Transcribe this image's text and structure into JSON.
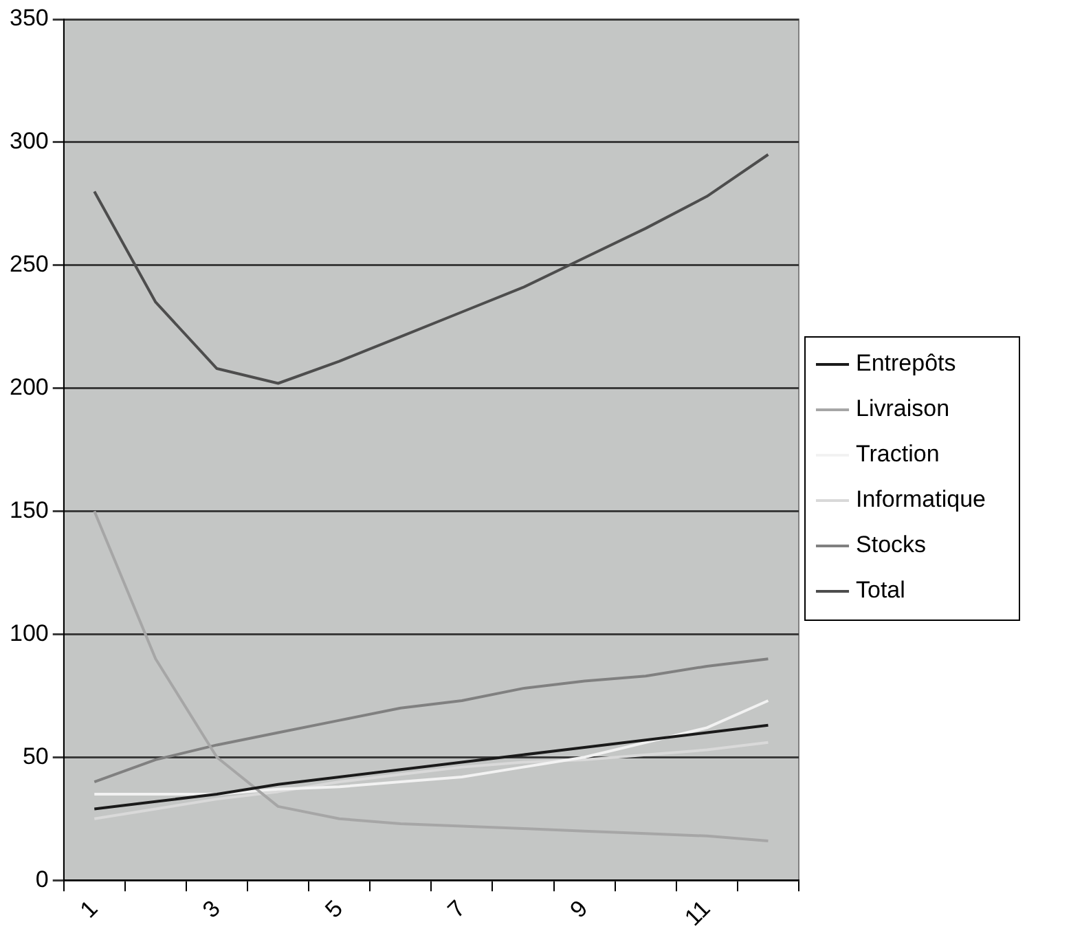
{
  "chart_data": {
    "type": "line",
    "categories": [
      "1",
      null,
      "3",
      null,
      "5",
      null,
      "7",
      null,
      "9",
      null,
      "11",
      null
    ],
    "series": [
      {
        "name": "Entrepôts",
        "color": "#1a1a1a",
        "values": [
          29,
          32,
          35,
          39,
          42,
          45,
          48,
          51,
          54,
          57,
          60,
          63
        ]
      },
      {
        "name": "Livraison",
        "color": "#a6a6a6",
        "values": [
          150,
          90,
          50,
          30,
          25,
          23,
          22,
          21,
          20,
          19,
          18,
          16
        ]
      },
      {
        "name": "Traction",
        "color": "#f2f2f2",
        "values": [
          35,
          35,
          35,
          37,
          38,
          40,
          42,
          46,
          50,
          56,
          62,
          73
        ]
      },
      {
        "name": "Informatique",
        "color": "#d9d9d9",
        "values": [
          25,
          29,
          33,
          36,
          40,
          43,
          46,
          48,
          49,
          51,
          53,
          56
        ]
      },
      {
        "name": "Stocks",
        "color": "#808080",
        "values": [
          40,
          49,
          55,
          60,
          65,
          70,
          73,
          78,
          81,
          83,
          87,
          90
        ]
      },
      {
        "name": "Total",
        "color": "#4d4d4d",
        "values": [
          280,
          235,
          208,
          202,
          211,
          221,
          231,
          241,
          253,
          265,
          278,
          295
        ]
      }
    ],
    "ylim": [
      0,
      350
    ],
    "yticks": [
      0,
      50,
      100,
      150,
      200,
      250,
      300,
      350
    ],
    "grid": "y",
    "legend": "right",
    "marker": "none",
    "line_style": "solid"
  }
}
